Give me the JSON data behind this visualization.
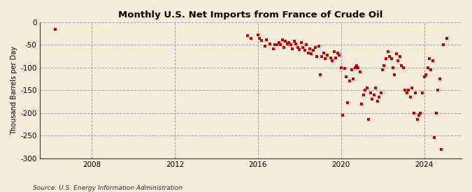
{
  "title": "Monthly U.S. Net Imports from France of Crude Oil",
  "ylabel": "Thousand Barrels per Day",
  "source": "Source: U.S. Energy Information Administration",
  "ylim": [
    -300,
    0
  ],
  "yticks": [
    0,
    -50,
    -100,
    -150,
    -200,
    -250,
    -300
  ],
  "xlim": [
    2005.5,
    2025.8
  ],
  "xticks": [
    2008,
    2012,
    2016,
    2020,
    2024
  ],
  "background_color": "#f5edda",
  "plot_bg_color": "#f5edda",
  "marker_color": "#cc0000",
  "marker_size": 12,
  "data_points": [
    [
      2006.25,
      -15
    ],
    [
      2015.5,
      -30
    ],
    [
      2015.67,
      -35
    ],
    [
      2016.0,
      -28
    ],
    [
      2016.08,
      -35
    ],
    [
      2016.17,
      -40
    ],
    [
      2016.33,
      -52
    ],
    [
      2016.42,
      -38
    ],
    [
      2016.58,
      -48
    ],
    [
      2016.75,
      -58
    ],
    [
      2016.83,
      -50
    ],
    [
      2016.92,
      -50
    ],
    [
      2017.0,
      -45
    ],
    [
      2017.08,
      -50
    ],
    [
      2017.17,
      -38
    ],
    [
      2017.25,
      -55
    ],
    [
      2017.33,
      -42
    ],
    [
      2017.42,
      -48
    ],
    [
      2017.5,
      -45
    ],
    [
      2017.58,
      -50
    ],
    [
      2017.67,
      -58
    ],
    [
      2017.75,
      -42
    ],
    [
      2017.83,
      -48
    ],
    [
      2017.92,
      -55
    ],
    [
      2018.0,
      -60
    ],
    [
      2018.08,
      -45
    ],
    [
      2018.17,
      -55
    ],
    [
      2018.25,
      -62
    ],
    [
      2018.33,
      -50
    ],
    [
      2018.42,
      -68
    ],
    [
      2018.5,
      -58
    ],
    [
      2018.58,
      -70
    ],
    [
      2018.67,
      -62
    ],
    [
      2018.75,
      -55
    ],
    [
      2018.83,
      -75
    ],
    [
      2018.92,
      -52
    ],
    [
      2019.0,
      -115
    ],
    [
      2019.08,
      -75
    ],
    [
      2019.17,
      -68
    ],
    [
      2019.25,
      -80
    ],
    [
      2019.33,
      -72
    ],
    [
      2019.5,
      -78
    ],
    [
      2019.58,
      -85
    ],
    [
      2019.67,
      -65
    ],
    [
      2019.75,
      -78
    ],
    [
      2019.83,
      -68
    ],
    [
      2019.92,
      -72
    ],
    [
      2020.0,
      -100
    ],
    [
      2020.08,
      -205
    ],
    [
      2020.17,
      -102
    ],
    [
      2020.25,
      -120
    ],
    [
      2020.33,
      -178
    ],
    [
      2020.42,
      -130
    ],
    [
      2020.5,
      -105
    ],
    [
      2020.58,
      -125
    ],
    [
      2020.67,
      -100
    ],
    [
      2020.75,
      -95
    ],
    [
      2020.83,
      -100
    ],
    [
      2020.92,
      -110
    ],
    [
      2021.0,
      -180
    ],
    [
      2021.08,
      -160
    ],
    [
      2021.17,
      -150
    ],
    [
      2021.25,
      -145
    ],
    [
      2021.33,
      -215
    ],
    [
      2021.42,
      -155
    ],
    [
      2021.5,
      -170
    ],
    [
      2021.58,
      -160
    ],
    [
      2021.67,
      -145
    ],
    [
      2021.75,
      -175
    ],
    [
      2021.83,
      -165
    ],
    [
      2021.92,
      -155
    ],
    [
      2022.0,
      -105
    ],
    [
      2022.08,
      -95
    ],
    [
      2022.17,
      -80
    ],
    [
      2022.25,
      -65
    ],
    [
      2022.33,
      -75
    ],
    [
      2022.42,
      -80
    ],
    [
      2022.5,
      -100
    ],
    [
      2022.58,
      -115
    ],
    [
      2022.67,
      -70
    ],
    [
      2022.75,
      -85
    ],
    [
      2022.83,
      -75
    ],
    [
      2022.92,
      -95
    ],
    [
      2023.0,
      -100
    ],
    [
      2023.08,
      -150
    ],
    [
      2023.17,
      -155
    ],
    [
      2023.25,
      -150
    ],
    [
      2023.33,
      -165
    ],
    [
      2023.42,
      -145
    ],
    [
      2023.5,
      -200
    ],
    [
      2023.58,
      -155
    ],
    [
      2023.67,
      -215
    ],
    [
      2023.75,
      -205
    ],
    [
      2023.83,
      -200
    ],
    [
      2023.92,
      -155
    ],
    [
      2024.0,
      -120
    ],
    [
      2024.08,
      -115
    ],
    [
      2024.17,
      -100
    ],
    [
      2024.25,
      -80
    ],
    [
      2024.33,
      -105
    ],
    [
      2024.42,
      -85
    ],
    [
      2024.5,
      -255
    ],
    [
      2024.58,
      -200
    ],
    [
      2024.67,
      -150
    ],
    [
      2024.75,
      -125
    ],
    [
      2024.83,
      -280
    ],
    [
      2024.92,
      -50
    ],
    [
      2025.08,
      -35
    ]
  ]
}
